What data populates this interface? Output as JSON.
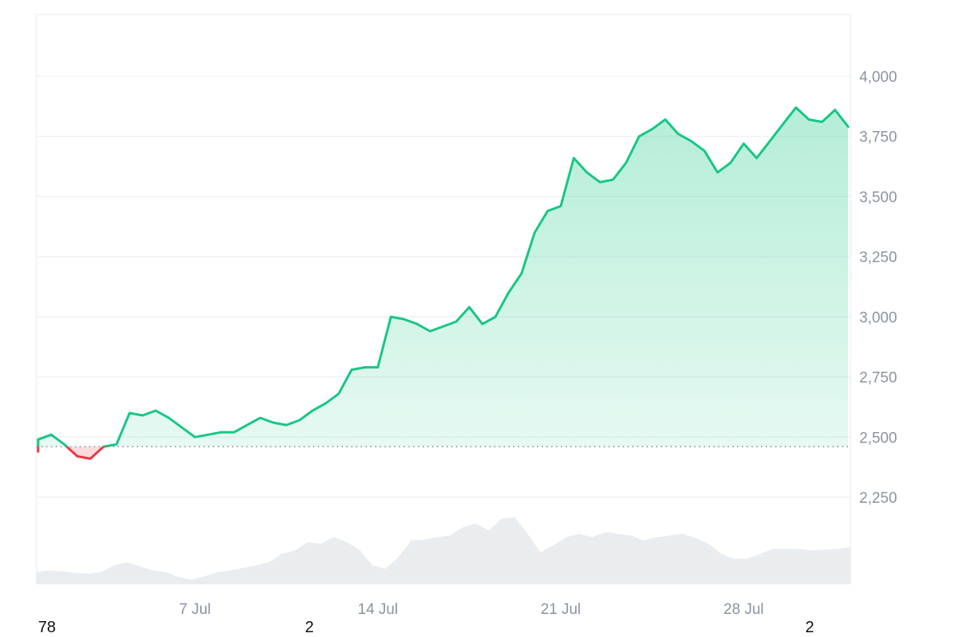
{
  "chart_data": {
    "type": "area",
    "x_range": [
      "1 Jul",
      "1 Aug"
    ],
    "ylim": [
      2150,
      4250
    ],
    "yticks": [
      2250,
      2500,
      2750,
      3000,
      3250,
      3500,
      3750,
      4000
    ],
    "ytick_labels": [
      "2,250",
      "2,500",
      "2,750",
      "3,000",
      "3,250",
      "3,500",
      "3,750",
      "4,000"
    ],
    "xtick_labels": [
      "7 Jul",
      "14 Jul",
      "21 Jul",
      "28 Jul"
    ],
    "baseline": 2460,
    "grid": true,
    "series": [
      {
        "role": "price",
        "x": [
          "1 Jul",
          "1 Jul",
          "1.5 Jul",
          "2 Jul",
          "2.5 Jul",
          "3 Jul",
          "3.5 Jul",
          "4 Jul",
          "4.5 Jul",
          "5 Jul",
          "5.5 Jul",
          "6 Jul",
          "6.5 Jul",
          "7 Jul",
          "7.5 Jul",
          "8 Jul",
          "8.5 Jul",
          "9 Jul",
          "9.5 Jul",
          "10 Jul",
          "10.5 Jul",
          "11 Jul",
          "11.5 Jul",
          "12 Jul",
          "12.5 Jul",
          "13 Jul",
          "13.5 Jul",
          "14 Jul",
          "14.5 Jul",
          "15 Jul",
          "15.5 Jul",
          "16 Jul",
          "16.5 Jul",
          "17 Jul",
          "17.5 Jul",
          "18 Jul",
          "18.5 Jul",
          "19 Jul",
          "19.5 Jul",
          "20 Jul",
          "20.5 Jul",
          "21 Jul",
          "21.5 Jul",
          "22 Jul",
          "22.5 Jul",
          "23 Jul",
          "23.5 Jul",
          "24 Jul",
          "24.5 Jul",
          "25 Jul",
          "25.5 Jul",
          "26 Jul",
          "26.5 Jul",
          "27 Jul",
          "27.5 Jul",
          "28 Jul",
          "28.5 Jul",
          "29 Jul",
          "29.5 Jul",
          "30 Jul",
          "30.5 Jul",
          "31 Jul",
          "31.5 Jul",
          "1 Aug"
        ],
        "y": [
          2440,
          2490,
          2510,
          2470,
          2420,
          2410,
          2460,
          2470,
          2600,
          2590,
          2610,
          2580,
          2540,
          2500,
          2510,
          2520,
          2520,
          2550,
          2580,
          2560,
          2550,
          2570,
          2610,
          2640,
          2680,
          2780,
          2790,
          2790,
          3000,
          2990,
          2970,
          2940,
          2960,
          2980,
          3040,
          2970,
          3000,
          3100,
          3180,
          3350,
          3440,
          3460,
          3660,
          3600,
          3560,
          3570,
          3640,
          3750,
          3780,
          3820,
          3760,
          3730,
          3690,
          3600,
          3640,
          3720,
          3660,
          3730,
          3800,
          3870,
          3820,
          3810,
          3860,
          3790
        ]
      },
      {
        "role": "volume",
        "values": [
          0.14,
          0.16,
          0.15,
          0.13,
          0.12,
          0.14,
          0.22,
          0.26,
          0.21,
          0.16,
          0.14,
          0.08,
          0.05,
          0.09,
          0.14,
          0.16,
          0.19,
          0.22,
          0.26,
          0.36,
          0.4,
          0.5,
          0.48,
          0.56,
          0.5,
          0.41,
          0.22,
          0.18,
          0.32,
          0.52,
          0.53,
          0.56,
          0.58,
          0.68,
          0.72,
          0.64,
          0.78,
          0.8,
          0.6,
          0.38,
          0.46,
          0.56,
          0.6,
          0.56,
          0.62,
          0.6,
          0.58,
          0.52,
          0.56,
          0.58,
          0.6,
          0.55,
          0.48,
          0.36,
          0.3,
          0.3,
          0.36,
          0.42,
          0.42,
          0.42,
          0.4,
          0.41,
          0.42,
          0.44
        ]
      }
    ]
  },
  "corner_labels": {
    "left": "78",
    "middle": "2",
    "right": "2"
  },
  "colors": {
    "up": "#16c784",
    "down": "#ea3943",
    "grid": "#e8ebee",
    "volume": "#e9edf0",
    "baseline": "#9aa3ad"
  }
}
